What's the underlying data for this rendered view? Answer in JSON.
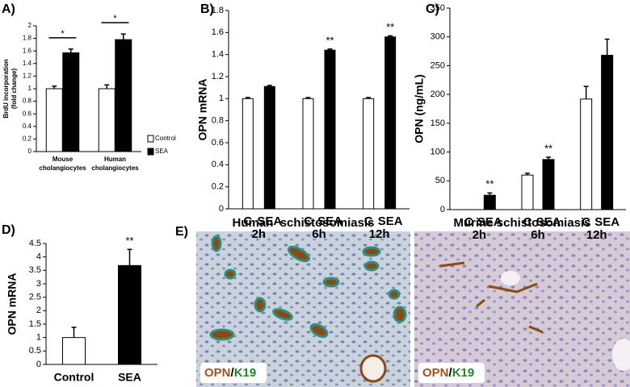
{
  "chart_data": [
    {
      "type": "bar",
      "panel_label": "A)",
      "ylabel": "BrdU incorporation (fold change)",
      "categories": [
        "Mouse cholangiocytes",
        "Human cholangiocytes"
      ],
      "series": [
        {
          "name": "Control",
          "color": "#ffffff",
          "values": [
            1.0,
            1.0
          ],
          "errors": [
            0.04,
            0.06
          ]
        },
        {
          "name": "SEA",
          "color": "#000000",
          "values": [
            1.57,
            1.78
          ],
          "errors": [
            0.06,
            0.09
          ]
        }
      ],
      "ylim": [
        0,
        2
      ],
      "yticks": [
        0,
        0.2,
        0.4,
        0.6,
        0.8,
        1,
        1.2,
        1.4,
        1.6,
        1.8,
        2
      ],
      "legend": "right",
      "annotations": [
        "*",
        "*"
      ]
    },
    {
      "type": "bar",
      "panel_label": "B)",
      "ylabel": "OPN mRNA",
      "categories": [
        "2h",
        "6h",
        "12h"
      ],
      "series": [
        {
          "name": "C",
          "color": "#ffffff",
          "values": [
            1.0,
            1.0,
            1.0
          ],
          "errors": [
            0.01,
            0.01,
            0.01
          ]
        },
        {
          "name": "SEA",
          "color": "#000000",
          "values": [
            1.11,
            1.44,
            1.56
          ],
          "errors": [
            0.01,
            0.01,
            0.01
          ]
        }
      ],
      "ylim": [
        0,
        1.8
      ],
      "yticks": [
        0,
        0.2,
        0.4,
        0.6,
        0.8,
        1,
        1.2,
        1.4,
        1.6,
        1.8
      ],
      "annotations": [
        "**",
        "**"
      ]
    },
    {
      "type": "bar",
      "panel_label": "C)",
      "ylabel": "OPN (ng/mL)",
      "categories": [
        "2h",
        "6h",
        "12h"
      ],
      "series": [
        {
          "name": "C",
          "color": "#ffffff",
          "values": [
            0,
            60,
            192
          ],
          "errors": [
            0,
            3,
            22
          ]
        },
        {
          "name": "SEA",
          "color": "#000000",
          "values": [
            25,
            87,
            268
          ],
          "errors": [
            4,
            4,
            28
          ]
        }
      ],
      "ylim": [
        0,
        350
      ],
      "yticks": [
        0,
        50,
        100,
        150,
        200,
        250,
        300,
        350
      ],
      "annotations": [
        "**",
        "**"
      ]
    },
    {
      "type": "bar",
      "panel_label": "D)",
      "ylabel": "OPN mRNA",
      "categories": [
        "Control",
        "SEA"
      ],
      "values": [
        1.0,
        3.68
      ],
      "errors": [
        0.38,
        0.6
      ],
      "colors": [
        "#ffffff",
        "#000000"
      ],
      "ylim": [
        0,
        4.5
      ],
      "yticks": [
        0,
        0.5,
        1,
        1.5,
        2,
        2.5,
        3,
        3.5,
        4,
        4.5
      ],
      "annotations": [
        "**"
      ]
    }
  ],
  "panel_e": {
    "label": "E)",
    "images": [
      {
        "title": "Human  schistosomiasis",
        "stain": "OPN",
        "separator": "/",
        "marker": "K19"
      },
      {
        "title": "Murine schistosomiasis",
        "stain": "OPN",
        "separator": "/",
        "marker": "K19"
      }
    ]
  }
}
